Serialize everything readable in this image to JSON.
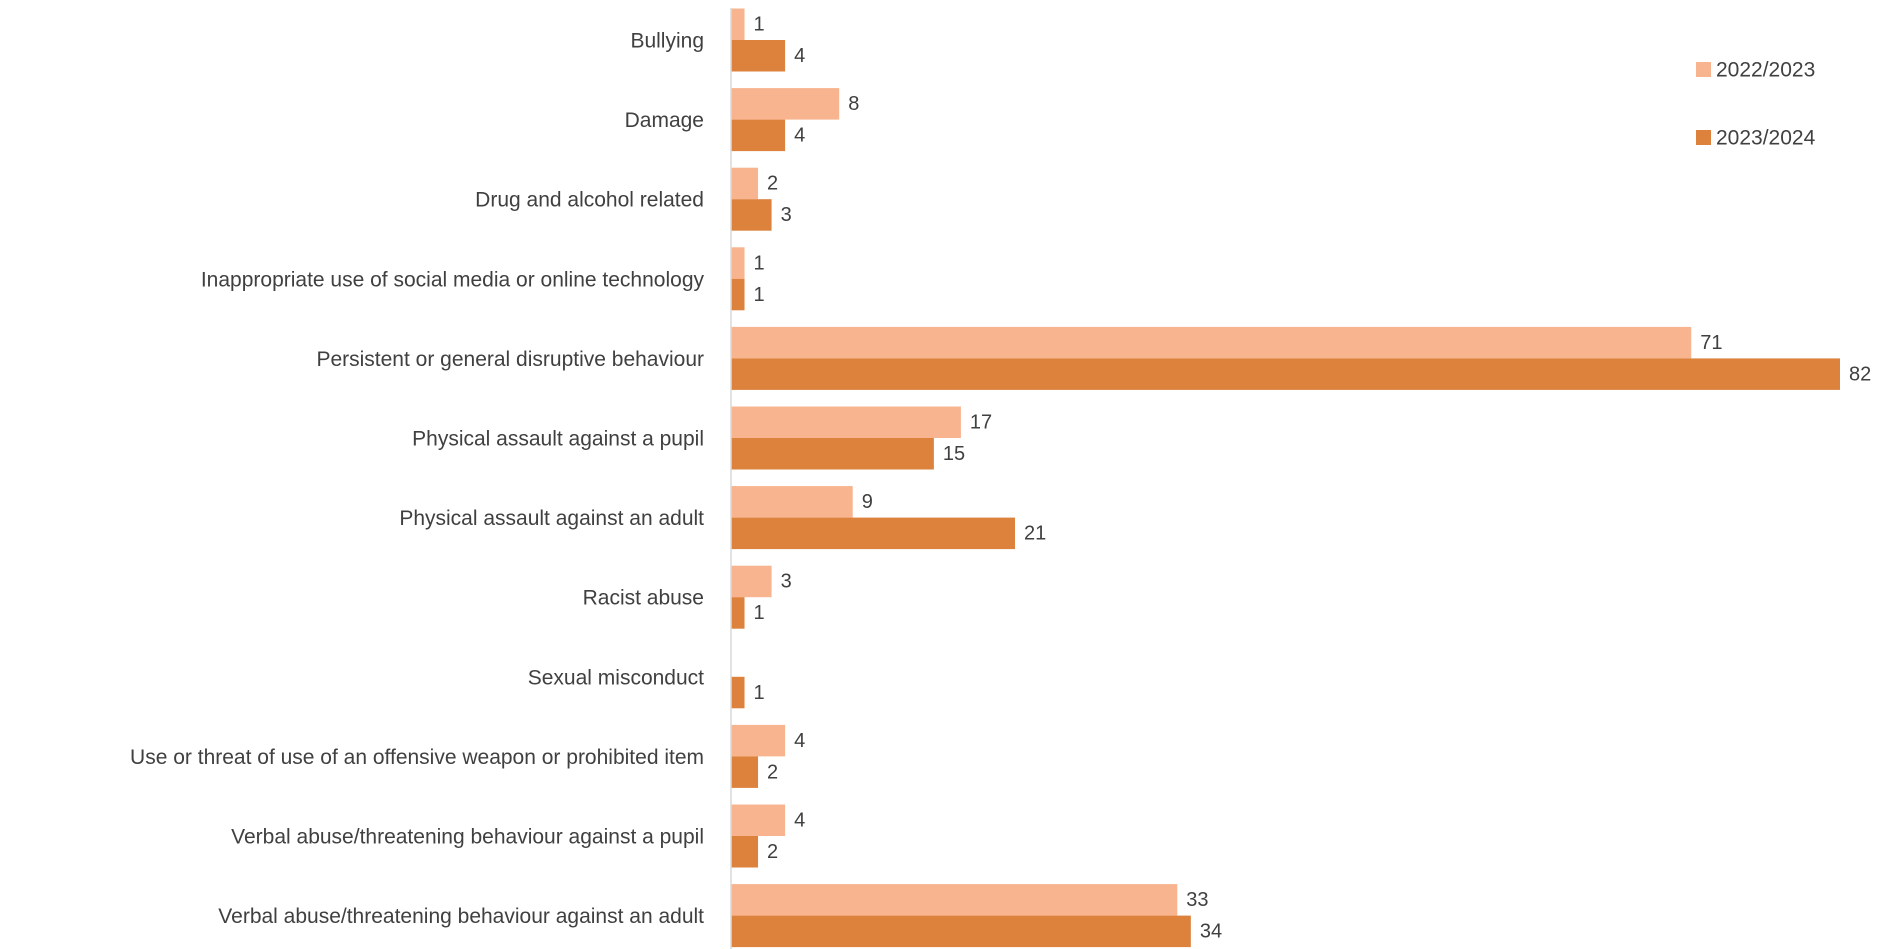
{
  "chart_data": {
    "type": "bar",
    "orientation": "horizontal",
    "categories": [
      "Bullying",
      "Damage",
      "Drug and alcohol related",
      "Inappropriate use of social media or online technology",
      "Persistent or general disruptive behaviour",
      "Physical assault against a pupil",
      "Physical assault against an adult",
      "Racist abuse",
      "Sexual misconduct",
      "Use or threat of use of an offensive weapon or prohibited item",
      "Verbal abuse/threatening behaviour against a pupil",
      "Verbal abuse/threatening behaviour against an adult"
    ],
    "series": [
      {
        "name": "2022/2023",
        "color": "#F8B48F",
        "values": [
          1,
          8,
          2,
          1,
          71,
          17,
          9,
          3,
          null,
          4,
          4,
          33
        ]
      },
      {
        "name": "2023/2024",
        "color": "#DC823C",
        "values": [
          4,
          4,
          3,
          1,
          82,
          15,
          21,
          1,
          1,
          2,
          2,
          34
        ]
      }
    ],
    "title": "",
    "xlabel": "",
    "ylabel": "",
    "xlim": [
      0,
      82
    ],
    "grid": false,
    "data_labels": true,
    "legend_position": "top-right"
  }
}
